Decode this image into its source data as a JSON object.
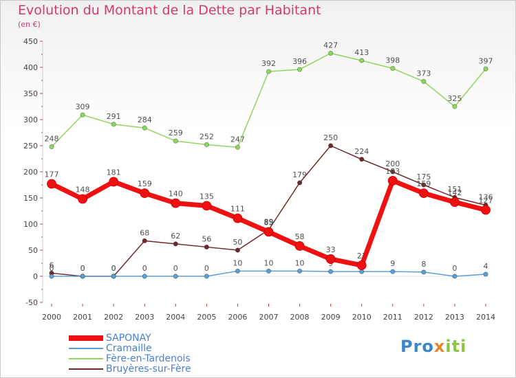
{
  "title": "Evolution du Montant de la Dette par Habitant",
  "unit": "(en €)",
  "logo": {
    "p1": "Pro",
    "p2": "x",
    "p3": "iti"
  },
  "chart_data": {
    "type": "line",
    "x": [
      "2000",
      "2001",
      "2002",
      "2003",
      "2004",
      "2005",
      "2006",
      "2007",
      "2008",
      "2009",
      "2010",
      "2011",
      "2012",
      "2013",
      "2014"
    ],
    "ylim": [
      -50,
      450
    ],
    "yticks": [
      -50,
      0,
      50,
      100,
      150,
      200,
      250,
      300,
      350,
      400,
      450
    ],
    "grid": false,
    "legend_position": "bottom-left",
    "series": [
      {
        "name": "Fère-en-Tardenois",
        "color": "#8fd65e",
        "labelColor": "#505050",
        "values": [
          248,
          309,
          291,
          284,
          259,
          252,
          247,
          392,
          396,
          427,
          413,
          398,
          373,
          325,
          397
        ],
        "labels": [
          "248",
          "309",
          "291",
          "284",
          "259",
          "252",
          "247",
          "392",
          "396",
          "427",
          "413",
          "398",
          "373",
          "325",
          "397"
        ]
      },
      {
        "name": "Bruyères-sur-Fère",
        "color": "#6e2a2a",
        "labelColor": "#505050",
        "values": [
          6,
          0,
          0,
          68,
          62,
          56,
          50,
          89,
          179,
          250,
          224,
          200,
          175,
          151,
          136
        ],
        "labels": [
          "6",
          "0",
          "0",
          "68",
          "62",
          "56",
          "50",
          "89",
          "179",
          "250",
          "224",
          "200",
          "175",
          "151",
          "136"
        ]
      },
      {
        "name": "Cramaille",
        "color": "#5b9fd4",
        "labelColor": "#505050",
        "values": [
          0,
          0,
          0,
          0,
          0,
          0,
          10,
          10,
          10,
          9,
          9,
          9,
          8,
          0,
          4
        ],
        "labels": [
          "0",
          "0",
          "0",
          "0",
          "0",
          "0",
          "10",
          "10",
          "10",
          "9",
          "9",
          "9",
          "8",
          "0",
          "4"
        ]
      },
      {
        "name": "SAPONAY",
        "color": "#ee1111",
        "labelColor": "#505050",
        "values": [
          177,
          148,
          181,
          159,
          140,
          135,
          111,
          85,
          58,
          33,
          21,
          183,
          159,
          142,
          127
        ],
        "labels": [
          "177",
          "148",
          "181",
          "159",
          "140",
          "135",
          "111",
          "85",
          "58",
          "33",
          "21",
          "183",
          "159",
          "142",
          "127"
        ]
      }
    ]
  },
  "legend": [
    {
      "name": "SAPONAY",
      "color": "#ee1111",
      "text_color": "#4a7fd0"
    },
    {
      "name": "Cramaille",
      "color": "#5b9fd4",
      "text_color": "#4a7fd0"
    },
    {
      "name": "Fère-en-Tardenois",
      "color": "#8fd65e",
      "text_color": "#4a7fd0"
    },
    {
      "name": "Bruyères-sur-Fère",
      "color": "#6e2a2a",
      "text_color": "#4a7fd0"
    }
  ]
}
